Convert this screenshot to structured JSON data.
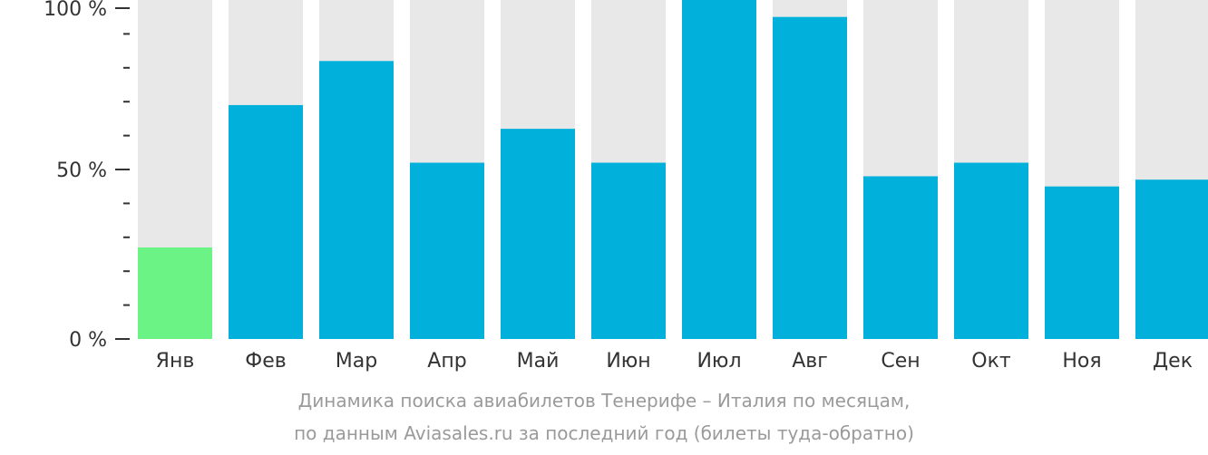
{
  "chart_data": {
    "type": "bar",
    "categories": [
      "Янв",
      "Фев",
      "Мар",
      "Апр",
      "Май",
      "Июн",
      "Июл",
      "Авг",
      "Сен",
      "Окт",
      "Ноя",
      "Дек"
    ],
    "values": [
      27,
      69,
      82,
      52,
      62,
      52,
      100,
      95,
      48,
      52,
      45,
      47
    ],
    "ylim": [
      0,
      100
    ],
    "y_tick_labels": [
      {
        "value": 100,
        "label": "100 %"
      },
      {
        "value": 50,
        "label": "50 %"
      },
      {
        "value": 0,
        "label": "0 %"
      }
    ],
    "y_minor_ticks": [
      10,
      20,
      30,
      40,
      60,
      70,
      80,
      90
    ],
    "highlight_index": 0,
    "colors": {
      "bar": "#02b0dc",
      "highlight": "#6bf385",
      "background": "#e8e8e8",
      "axis_text": "#333333"
    },
    "caption_line1": "Динамика поиска авиабилетов Тенерифе – Италия по месяцам,",
    "caption_line2": "по данным Aviasales.ru за последний год (билеты туда-обратно)"
  }
}
